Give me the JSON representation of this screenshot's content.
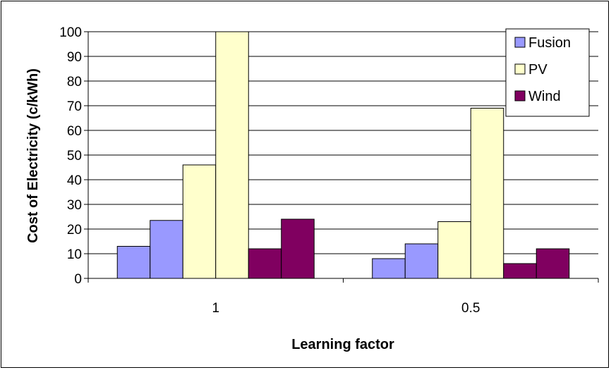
{
  "chart_data": {
    "type": "bar",
    "title": "",
    "xlabel": "Learning factor",
    "ylabel": "Cost of Electricity (c/kWh)",
    "categories": [
      "1",
      "0.5"
    ],
    "ylim": [
      0,
      100
    ],
    "yticks": [
      0,
      10,
      20,
      30,
      40,
      50,
      60,
      70,
      80,
      90,
      100
    ],
    "grid": true,
    "legend_position": "top-right",
    "series": [
      {
        "name": "Fusion",
        "color": "#9999FF",
        "values": [
          [
            13,
            23.5
          ],
          [
            8,
            14
          ]
        ]
      },
      {
        "name": "PV",
        "color": "#FFFFCC",
        "values": [
          [
            46,
            101
          ],
          [
            23,
            69
          ]
        ]
      },
      {
        "name": "Wind",
        "color": "#800060",
        "values": [
          [
            12,
            24
          ],
          [
            6,
            12
          ]
        ]
      }
    ]
  }
}
